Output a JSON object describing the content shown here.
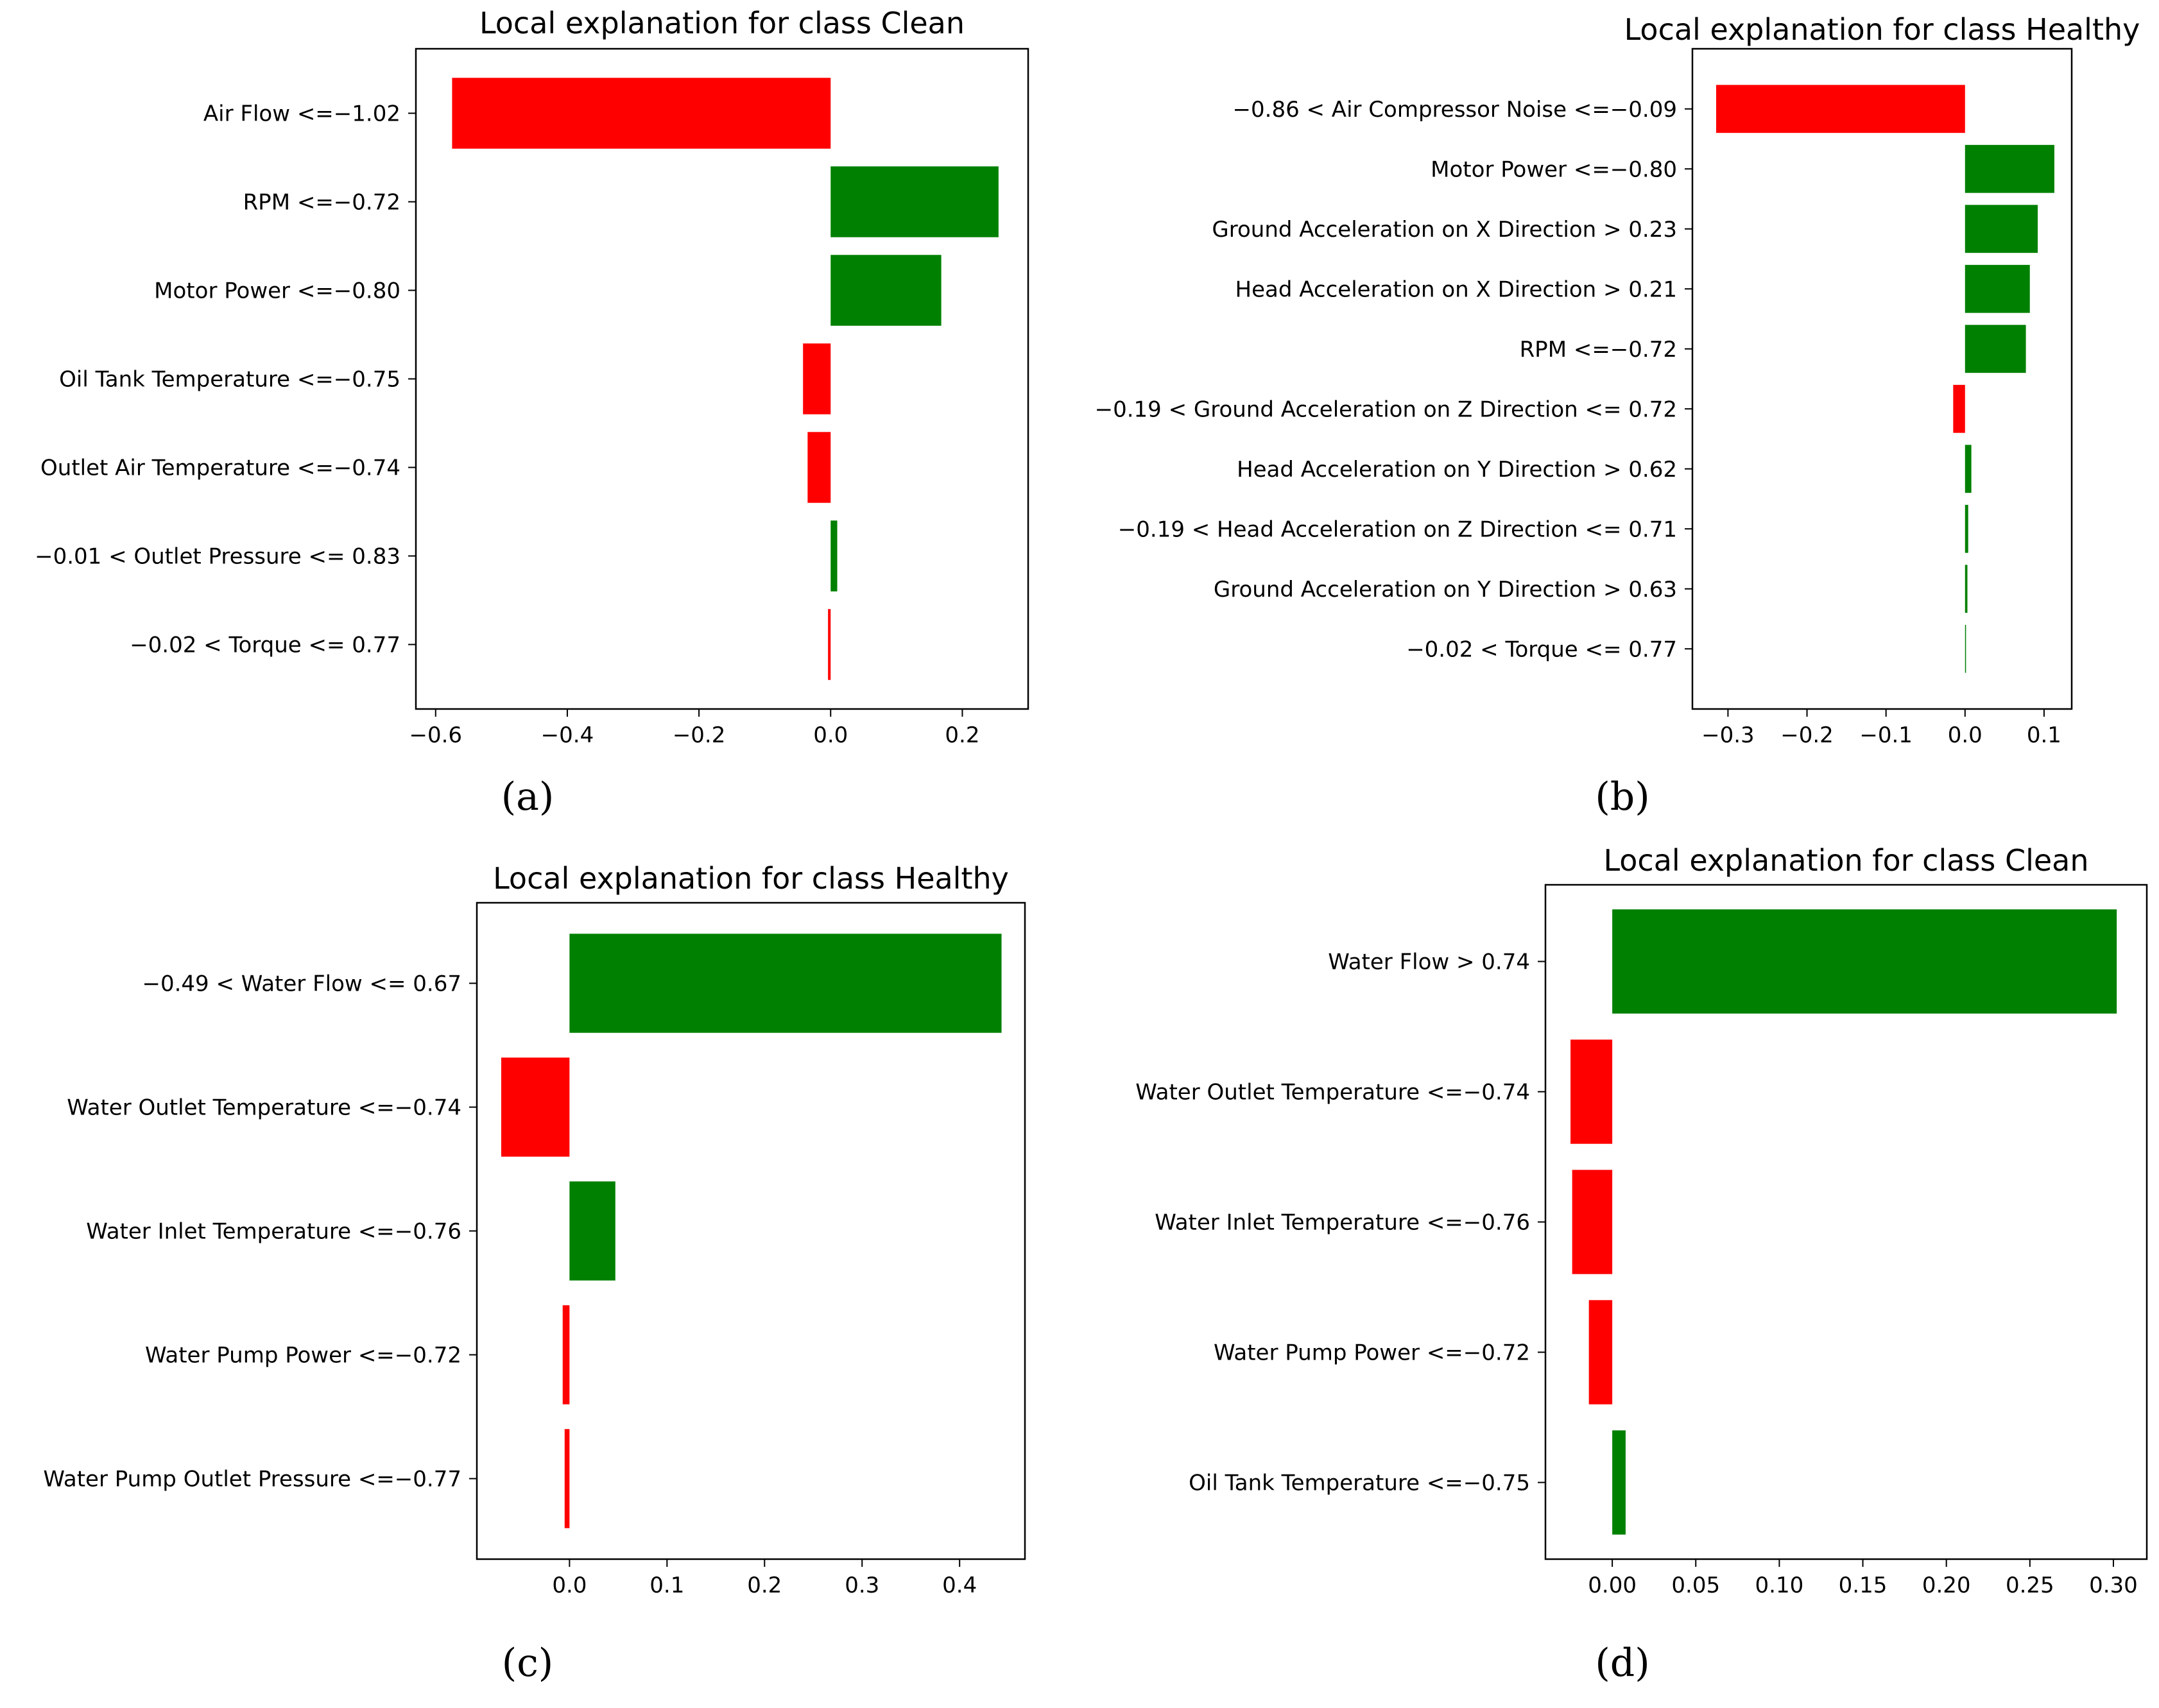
{
  "figure": {
    "panels": [
      "(a)",
      "(b)",
      "(c)",
      "(d)"
    ]
  },
  "colors": {
    "positive": "#008000",
    "negative": "#ff0000"
  },
  "chart_data": [
    {
      "panel": "(a)",
      "type": "bar",
      "orientation": "horizontal",
      "title": "Local explanation for class Clean",
      "xlabel": "",
      "ylabel": "",
      "categories": [
        "Air Flow <=−1.02",
        "RPM <=−0.72",
        "Motor Power <=−0.80",
        "Oil Tank Temperature <=−0.75",
        "Outlet Air Temperature <=−0.74",
        "−0.01 < Outlet Pressure <= 0.83",
        "−0.02 < Torque <= 0.77"
      ],
      "values": [
        -0.575,
        0.255,
        0.168,
        -0.042,
        -0.035,
        0.01,
        -0.004
      ],
      "xlim": [
        -0.63,
        0.3
      ],
      "xticks": [
        -0.6,
        -0.4,
        -0.2,
        0.0,
        0.2
      ],
      "xtick_labels": [
        "−0.6",
        "−0.4",
        "−0.2",
        "0.0",
        "0.2"
      ],
      "grid": false
    },
    {
      "panel": "(b)",
      "type": "bar",
      "orientation": "horizontal",
      "title": "Local explanation for class Healthy",
      "xlabel": "",
      "ylabel": "",
      "categories": [
        "−0.86 < Air Compressor Noise <=−0.09",
        "Motor Power <=−0.80",
        "Ground Acceleration on X Direction > 0.23",
        "Head Acceleration on X Direction > 0.21",
        "RPM <=−0.72",
        "−0.19 < Ground Acceleration on Z Direction <= 0.72",
        "Head Acceleration on Y Direction > 0.62",
        "−0.19 < Head Acceleration on Z Direction <= 0.71",
        "Ground Acceleration on Y Direction > 0.63",
        "−0.02 < Torque <= 0.77"
      ],
      "values": [
        -0.315,
        0.113,
        0.092,
        0.082,
        0.077,
        -0.015,
        0.008,
        0.004,
        0.003,
        0.001
      ],
      "xlim": [
        -0.345,
        0.135
      ],
      "xticks": [
        -0.3,
        -0.2,
        -0.1,
        0.0,
        0.1
      ],
      "xtick_labels": [
        "−0.3",
        "−0.2",
        "−0.1",
        "0.0",
        "0.1"
      ],
      "grid": false
    },
    {
      "panel": "(c)",
      "type": "bar",
      "orientation": "horizontal",
      "title": "Local explanation for class Healthy",
      "xlabel": "",
      "ylabel": "",
      "categories": [
        "−0.49 < Water Flow <= 0.67",
        "Water Outlet Temperature <=−0.74",
        "Water Inlet Temperature <=−0.76",
        "Water Pump Power <=−0.72",
        "Water Pump Outlet Pressure <=−0.77"
      ],
      "values": [
        0.443,
        -0.07,
        0.047,
        -0.007,
        -0.005
      ],
      "xlim": [
        -0.095,
        0.467
      ],
      "xticks": [
        0.0,
        0.1,
        0.2,
        0.3,
        0.4
      ],
      "xtick_labels": [
        "0.0",
        "0.1",
        "0.2",
        "0.3",
        "0.4"
      ],
      "grid": false
    },
    {
      "panel": "(d)",
      "type": "bar",
      "orientation": "horizontal",
      "title": "Local explanation for class Clean",
      "xlabel": "",
      "ylabel": "",
      "categories": [
        "Water Flow > 0.74",
        "Water Outlet Temperature <=−0.74",
        "Water Inlet Temperature <=−0.76",
        "Water Pump Power <=−0.72",
        "Oil Tank Temperature <=−0.75"
      ],
      "values": [
        0.302,
        -0.025,
        -0.024,
        -0.014,
        0.008
      ],
      "xlim": [
        -0.04,
        0.32
      ],
      "xticks": [
        0.0,
        0.05,
        0.1,
        0.15,
        0.2,
        0.25,
        0.3
      ],
      "xtick_labels": [
        "0.00",
        "0.05",
        "0.10",
        "0.15",
        "0.20",
        "0.25",
        "0.30"
      ],
      "grid": false
    }
  ]
}
